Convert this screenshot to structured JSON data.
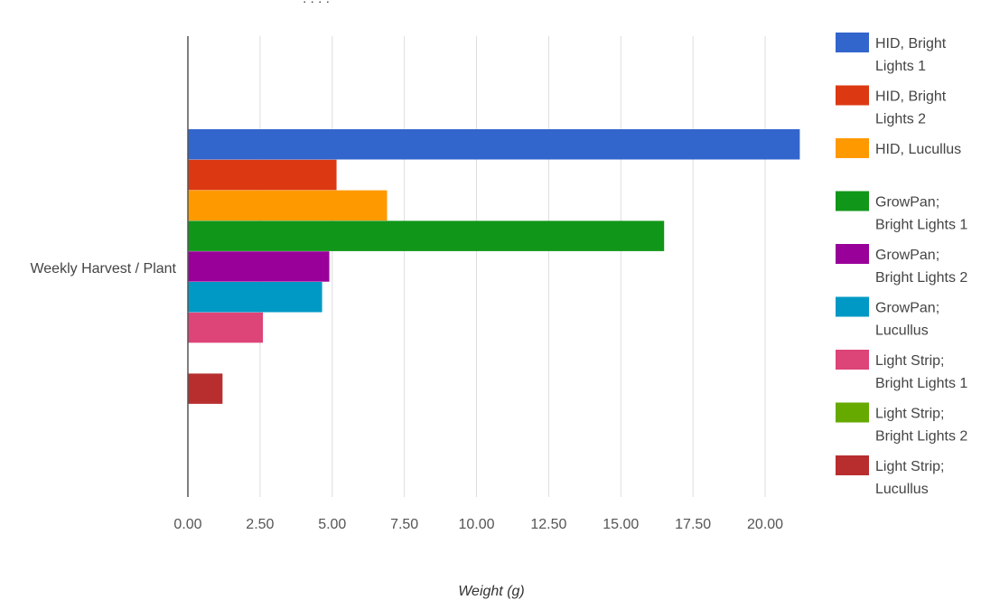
{
  "chart_data": {
    "type": "bar",
    "orientation": "horizontal",
    "title_fragment": "· · · ·",
    "categories": [
      "Weekly Harvest / Plant"
    ],
    "xlabel": "Weight (g)",
    "ylabel": "",
    "xlim": [
      0,
      21.25
    ],
    "ticks": [
      "0.00",
      "2.50",
      "5.00",
      "7.50",
      "10.00",
      "12.50",
      "15.00",
      "17.50",
      "20.00"
    ],
    "tick_values": [
      0,
      2.5,
      5,
      7.5,
      10,
      12.5,
      15,
      17.5,
      20
    ],
    "grid": true,
    "legend_position": "right",
    "series": [
      {
        "name": "HID, Bright Lights 1",
        "legend_lines": [
          "HID, Bright",
          "Lights 1"
        ],
        "color": "#3366cc",
        "values": [
          21.2
        ]
      },
      {
        "name": "HID, Bright Lights 2",
        "legend_lines": [
          "HID, Bright",
          "Lights 2"
        ],
        "color": "#dc3912",
        "values": [
          5.15
        ]
      },
      {
        "name": "HID, Lucullus",
        "legend_lines": [
          "HID, Lucullus"
        ],
        "color": "#ff9900",
        "values": [
          6.9
        ]
      },
      {
        "name": "GrowPan; Bright Lights 1",
        "legend_lines": [
          "GrowPan;",
          "Bright Lights 1"
        ],
        "color": "#109618",
        "values": [
          16.5
        ]
      },
      {
        "name": "GrowPan; Bright Lights 2",
        "legend_lines": [
          "GrowPan;",
          "Bright Lights 2"
        ],
        "color": "#990099",
        "values": [
          4.9
        ]
      },
      {
        "name": "GrowPan; Lucullus",
        "legend_lines": [
          "GrowPan;",
          "Lucullus"
        ],
        "color": "#0099c6",
        "values": [
          4.65
        ]
      },
      {
        "name": "Light Strip; Bright Lights 1",
        "legend_lines": [
          "Light Strip;",
          "Bright Lights 1"
        ],
        "color": "#dd4477",
        "values": [
          2.6
        ]
      },
      {
        "name": "Light Strip; Bright Lights 2",
        "legend_lines": [
          "Light Strip;",
          "Bright Lights 2"
        ],
        "color": "#66aa00",
        "values": [
          0
        ]
      },
      {
        "name": "Light Strip; Lucullus",
        "legend_lines": [
          "Light Strip;",
          "Lucullus"
        ],
        "color": "#b82e2e",
        "values": [
          1.2
        ]
      }
    ]
  }
}
